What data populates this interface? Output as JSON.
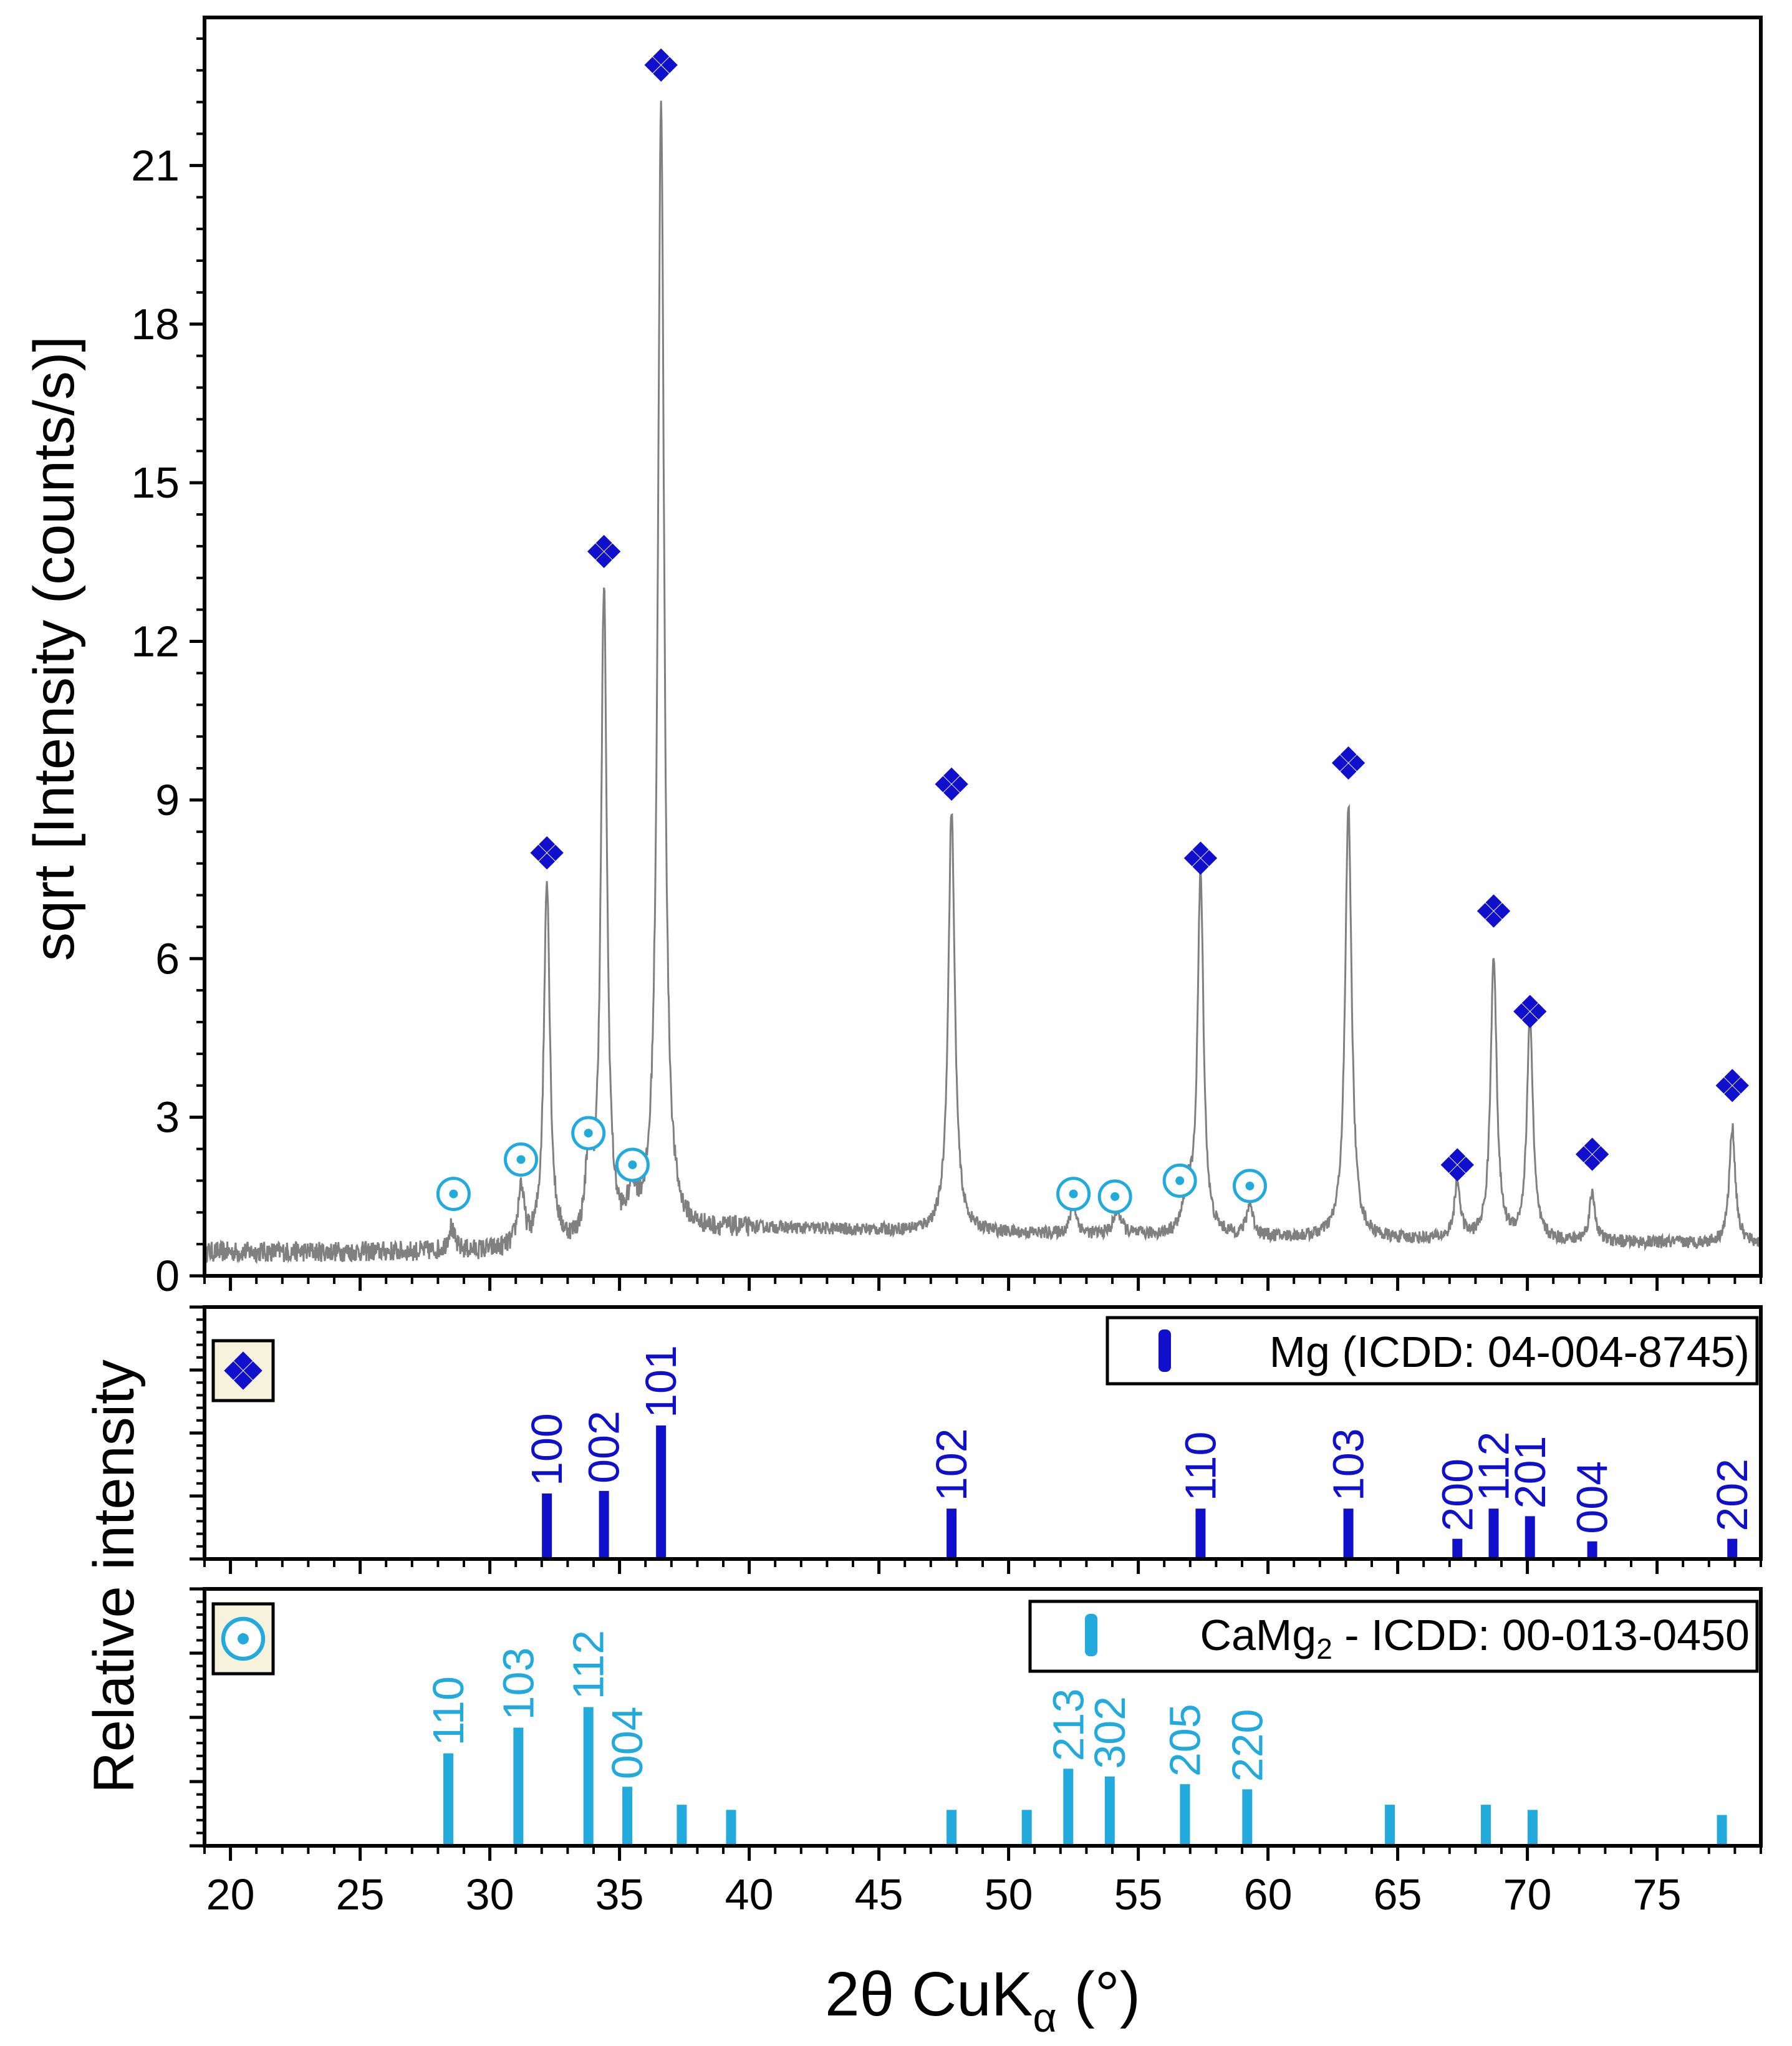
{
  "colors": {
    "pattern": "#808080",
    "mg": "#1010cc",
    "camg2": "#22aadd",
    "axis": "#000000",
    "legend_box_fill": "#f7f2dc"
  },
  "chart_data": [
    {
      "id": "xrd-pattern",
      "type": "line",
      "ylabel": "sqrt [Intensity (counts/s)]",
      "xlim": [
        19,
        79
      ],
      "ylim": [
        0,
        23.8
      ],
      "y_ticks": [
        0,
        3,
        6,
        9,
        12,
        15,
        18,
        21
      ],
      "y_tick_labels": [
        "0",
        "3",
        "6",
        "9",
        "12",
        "15",
        "18",
        "21"
      ],
      "background": {
        "start": 0.45,
        "rise_center": 37,
        "rise_amp": 0.5,
        "rise_width": 6,
        "noise": 0.15
      },
      "peaks": [
        {
          "x": 28.5,
          "h": 0.45,
          "w": 0.14
        },
        {
          "x": 31.2,
          "h": 1.15,
          "w": 0.14
        },
        {
          "x": 32.2,
          "h": 7.0,
          "w": 0.14
        },
        {
          "x": 33.8,
          "h": 1.45,
          "w": 0.14
        },
        {
          "x": 34.4,
          "h": 12.3,
          "w": 0.14
        },
        {
          "x": 35.5,
          "h": 0.75,
          "w": 0.2
        },
        {
          "x": 36.6,
          "h": 21.4,
          "w": 0.15
        },
        {
          "x": 47.8,
          "h": 8.0,
          "w": 0.15
        },
        {
          "x": 52.5,
          "h": 0.55,
          "w": 0.15
        },
        {
          "x": 54.2,
          "h": 0.45,
          "w": 0.18
        },
        {
          "x": 56.9,
          "h": 0.75,
          "w": 0.18
        },
        {
          "x": 57.4,
          "h": 6.8,
          "w": 0.14
        },
        {
          "x": 59.3,
          "h": 0.6,
          "w": 0.15
        },
        {
          "x": 63.1,
          "h": 8.2,
          "w": 0.15
        },
        {
          "x": 67.3,
          "h": 1.05,
          "w": 0.14
        },
        {
          "x": 68.7,
          "h": 5.4,
          "w": 0.14
        },
        {
          "x": 70.1,
          "h": 4.2,
          "w": 0.14
        },
        {
          "x": 72.5,
          "h": 0.9,
          "w": 0.14
        },
        {
          "x": 77.9,
          "h": 2.2,
          "w": 0.14
        }
      ],
      "mg_markers": [
        {
          "x": 32.2,
          "y": 8.0
        },
        {
          "x": 34.4,
          "y": 13.7
        },
        {
          "x": 36.6,
          "y": 22.9
        },
        {
          "x": 47.8,
          "y": 9.3
        },
        {
          "x": 57.4,
          "y": 7.9
        },
        {
          "x": 63.1,
          "y": 9.7
        },
        {
          "x": 67.3,
          "y": 2.1
        },
        {
          "x": 68.7,
          "y": 6.9
        },
        {
          "x": 70.1,
          "y": 5.0
        },
        {
          "x": 72.5,
          "y": 2.3
        },
        {
          "x": 77.9,
          "y": 3.6
        }
      ],
      "camg2_markers": [
        {
          "x": 28.6,
          "y": 1.55
        },
        {
          "x": 31.2,
          "y": 2.2
        },
        {
          "x": 33.8,
          "y": 2.7
        },
        {
          "x": 35.5,
          "y": 2.1
        },
        {
          "x": 52.5,
          "y": 1.55
        },
        {
          "x": 54.1,
          "y": 1.5
        },
        {
          "x": 56.6,
          "y": 1.8
        },
        {
          "x": 59.3,
          "y": 1.7
        }
      ]
    },
    {
      "id": "mg-reference",
      "type": "bar",
      "legend": "Mg (ICDD: 04-004-8745)",
      "ylim": [
        0,
        100
      ],
      "bars": [
        {
          "x": 32.2,
          "v": 26,
          "label": "100"
        },
        {
          "x": 34.4,
          "v": 27,
          "label": "002"
        },
        {
          "x": 36.6,
          "v": 53,
          "label": "101"
        },
        {
          "x": 47.8,
          "v": 20,
          "label": "102"
        },
        {
          "x": 57.4,
          "v": 20,
          "label": "110"
        },
        {
          "x": 63.1,
          "v": 20,
          "label": "103"
        },
        {
          "x": 67.3,
          "v": 8,
          "label": "200"
        },
        {
          "x": 68.7,
          "v": 20,
          "label": "112"
        },
        {
          "x": 70.1,
          "v": 17,
          "label": "201"
        },
        {
          "x": 72.5,
          "v": 7,
          "label": "004"
        },
        {
          "x": 77.9,
          "v": 8,
          "label": "202"
        }
      ]
    },
    {
      "id": "camg2-reference",
      "type": "bar",
      "legend_main": "CaMg",
      "legend_sub": "2",
      "legend_rest": " - ICDD: 00-013-0450",
      "ylim": [
        0,
        100
      ],
      "bars": [
        {
          "x": 28.4,
          "v": 36,
          "label": "110"
        },
        {
          "x": 31.1,
          "v": 46,
          "label": "103"
        },
        {
          "x": 33.8,
          "v": 54,
          "label": "112"
        },
        {
          "x": 35.3,
          "v": 23,
          "label": "004"
        },
        {
          "x": 37.4,
          "v": 16,
          "label": ""
        },
        {
          "x": 39.3,
          "v": 14,
          "label": ""
        },
        {
          "x": 47.8,
          "v": 14,
          "label": ""
        },
        {
          "x": 50.7,
          "v": 14,
          "label": ""
        },
        {
          "x": 52.3,
          "v": 30,
          "label": "213"
        },
        {
          "x": 53.9,
          "v": 27,
          "label": "302"
        },
        {
          "x": 56.8,
          "v": 24,
          "label": "205"
        },
        {
          "x": 59.2,
          "v": 22,
          "label": "220"
        },
        {
          "x": 64.7,
          "v": 16,
          "label": ""
        },
        {
          "x": 68.4,
          "v": 16,
          "label": ""
        },
        {
          "x": 70.2,
          "v": 14,
          "label": ""
        },
        {
          "x": 77.5,
          "v": 12,
          "label": ""
        }
      ]
    }
  ],
  "shared_x": {
    "label_main": "2θ CuK",
    "label_sub": "α",
    "label_rest": " (°)",
    "ticks": [
      20,
      25,
      30,
      35,
      40,
      45,
      50,
      55,
      60,
      65,
      70,
      75
    ],
    "tick_labels": [
      "20",
      "25",
      "30",
      "35",
      "40",
      "45",
      "50",
      "55",
      "60",
      "65",
      "70",
      "75"
    ]
  },
  "shared_ylabel_bottom": "Relative intensity"
}
